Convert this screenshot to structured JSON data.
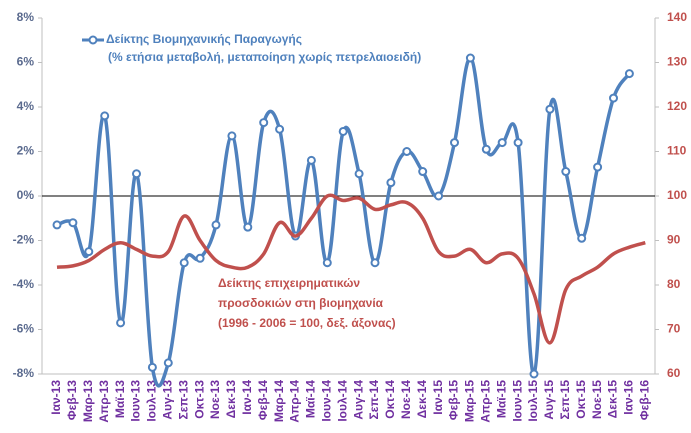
{
  "chart_data": {
    "type": "line",
    "categories": [
      "Ιαν-13",
      "Φεβ-13",
      "Μαρ-13",
      "Απρ-13",
      "Μαϊ-13",
      "Ιουν-13",
      "Ιουλ-13",
      "Αυγ-13",
      "Σεπ-13",
      "Οκτ-13",
      "Νοε-13",
      "Δεκ-13",
      "Ιαν-14",
      "Φεβ-14",
      "Μαρ-14",
      "Απρ-14",
      "Μαϊ-14",
      "Ιουν-14",
      "Ιουλ-14",
      "Αυγ-14",
      "Σεπ-14",
      "Οκτ-14",
      "Νοε-14",
      "Δεκ-14",
      "Ιαν-15",
      "Φεβ-15",
      "Μαρ-15",
      "Απρ-15",
      "Μαϊ-15",
      "Ιουν-15",
      "Ιουλ-15",
      "Αυγ-15",
      "Σεπ-15",
      "Οκτ-15",
      "Νοε-15",
      "Δεκ-15",
      "Ιαν-16",
      "Φεβ-16"
    ],
    "series": [
      {
        "name": [
          "Δείκτης Βιομηχανικής Παραγωγής",
          "(% ετήσια μεταβολή, μεταποίηση χωρίς πετρελαιοειδή)"
        ],
        "color": "#4f81bd",
        "markers": true,
        "values": [
          -1.3,
          -1.2,
          -2.5,
          3.6,
          -5.7,
          1.0,
          -7.7,
          -7.5,
          -3.0,
          -2.8,
          -1.3,
          2.7,
          -1.4,
          3.3,
          3.0,
          -1.8,
          1.6,
          -3.0,
          2.9,
          1.0,
          -3.0,
          0.6,
          2.0,
          1.1,
          0.0,
          2.4,
          6.2,
          2.1,
          2.4,
          2.4,
          -8.0,
          3.9,
          1.1,
          -1.9,
          1.3,
          4.4,
          5.5,
          null
        ]
      },
      {
        "name": [
          "Δείκτης επιχειρηματικών",
          "προσδοκιών στη βιομηχανία",
          "(1996 - 2006 = 100, δεξ. άξονας)"
        ],
        "color": "#c0504d",
        "axis": "y2",
        "markers": false,
        "values": [
          84,
          84.3,
          85.5,
          88,
          89.5,
          88,
          86.5,
          87.5,
          95.5,
          90,
          85.5,
          84,
          84,
          87,
          94,
          91,
          95,
          100,
          99,
          99.5,
          97,
          98,
          98.5,
          95,
          87.5,
          86.5,
          88,
          85,
          87,
          86,
          78,
          67,
          79,
          82,
          84,
          87,
          88.5,
          89.5
        ]
      }
    ],
    "ylim": [
      -8,
      8
    ],
    "yticks": [
      {
        "value": -8,
        "label": "-8%"
      },
      {
        "value": -6,
        "label": "-6%"
      },
      {
        "value": -4,
        "label": "-4%"
      },
      {
        "value": -2,
        "label": "-2%"
      },
      {
        "value": 0,
        "label": "0%"
      },
      {
        "value": 2,
        "label": "2%"
      },
      {
        "value": 4,
        "label": "4%"
      },
      {
        "value": 6,
        "label": "6%"
      },
      {
        "value": 8,
        "label": "8%"
      }
    ],
    "y2lim": [
      60,
      140
    ],
    "y2ticks": [
      60,
      70,
      80,
      90,
      100,
      110,
      120,
      130,
      140
    ],
    "zero_line": true
  }
}
